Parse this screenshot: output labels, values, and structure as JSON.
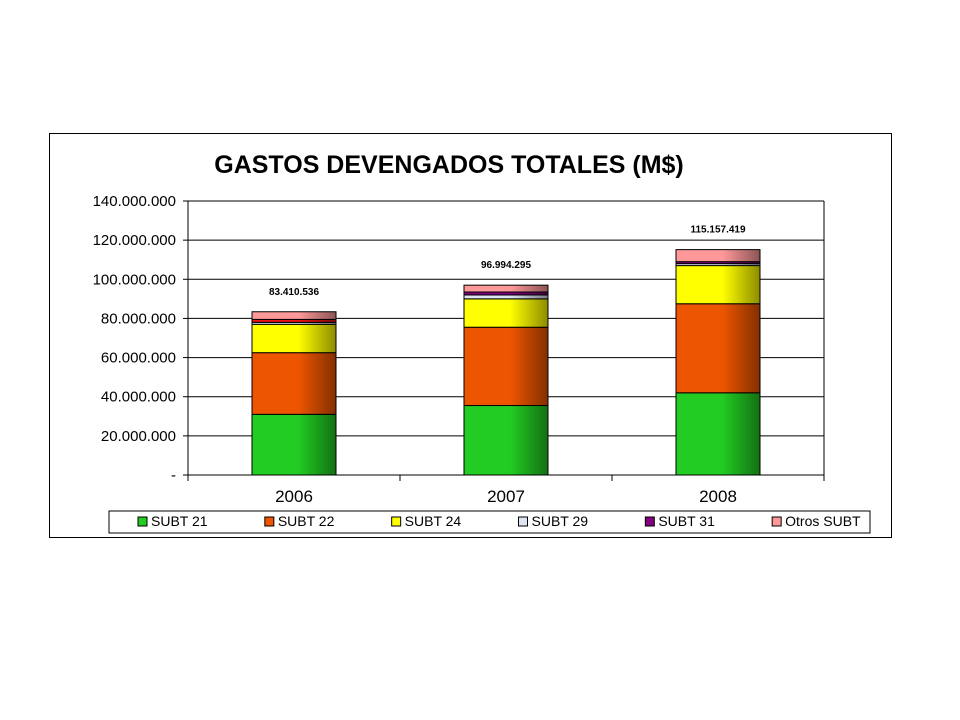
{
  "chart_data": {
    "type": "bar",
    "stacked": true,
    "title": "GASTOS DEVENGADOS TOTALES (M$)",
    "categories": [
      "2006",
      "2007",
      "2008"
    ],
    "ylim": [
      0,
      140000000
    ],
    "y_ticks": [
      {
        "value": 0,
        "label": "-"
      },
      {
        "value": 20000000,
        "label": "20.000.000"
      },
      {
        "value": 40000000,
        "label": "40.000.000"
      },
      {
        "value": 60000000,
        "label": "60.000.000"
      },
      {
        "value": 80000000,
        "label": "80.000.000"
      },
      {
        "value": 100000000,
        "label": "100.000.000"
      },
      {
        "value": 120000000,
        "label": "120.000.000"
      },
      {
        "value": 140000000,
        "label": "140.000.000"
      }
    ],
    "grid": true,
    "legend_position": "bottom",
    "series": [
      {
        "name": "SUBT 21",
        "color": "#22cc22",
        "values": [
          31000000,
          35500000,
          42000000
        ]
      },
      {
        "name": "SUBT 22",
        "color": "#ee5500",
        "values": [
          31500000,
          40000000,
          45500000
        ]
      },
      {
        "name": "SUBT 24",
        "color": "#ffff00",
        "values": [
          14500000,
          14500000,
          19500000
        ]
      },
      {
        "name": "SUBT 29",
        "color": "#dde4f2",
        "values": [
          1000000,
          2000000,
          1000000
        ]
      },
      {
        "name": "SUBT 31",
        "color": "#800080",
        "values": [
          1500000,
          1500000,
          1000000
        ]
      },
      {
        "name": "Otros SUBT",
        "color": "#ff9999",
        "values": [
          3910536,
          3494295,
          6157419
        ]
      }
    ],
    "segment_overrides": [
      {
        "series": 4,
        "category": 0,
        "color": "#ee1111"
      }
    ],
    "totals": [
      83410536,
      96994295,
      115157419
    ],
    "total_labels": [
      "83.410.536",
      "96.994.295",
      "115.157.419"
    ]
  }
}
